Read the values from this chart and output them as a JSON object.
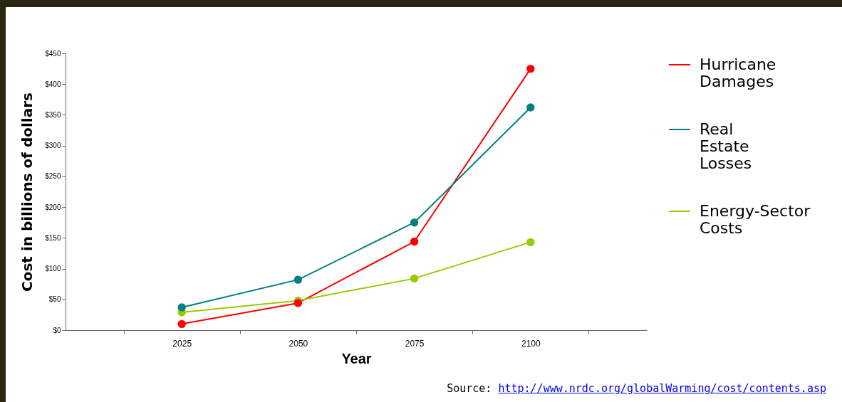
{
  "chart_data": {
    "type": "line",
    "xlabel": "Year",
    "ylabel": "Cost in billions of dollars",
    "categories": [
      "2025",
      "2050",
      "2075",
      "2100"
    ],
    "series": [
      {
        "name": "Hurricane Damages",
        "color": "#ff0000",
        "values": [
          10,
          44,
          144,
          425
        ]
      },
      {
        "name": "Real Estate Losses",
        "color": "#008080",
        "values": [
          37,
          82,
          175,
          362
        ]
      },
      {
        "name": "Energy-Sector Costs",
        "color": "#99cc00",
        "values": [
          29,
          48,
          84,
          143
        ]
      }
    ],
    "ylim": [
      0,
      450
    ],
    "yticks": [
      {
        "value": 0,
        "label": "$0"
      },
      {
        "value": 50,
        "label": "$50"
      },
      {
        "value": 100,
        "label": "$100"
      },
      {
        "value": 150,
        "label": "$150"
      },
      {
        "value": 200,
        "label": "$200"
      },
      {
        "value": 250,
        "label": "$250"
      },
      {
        "value": 300,
        "label": "$300"
      },
      {
        "value": 350,
        "label": "$350"
      },
      {
        "value": 400,
        "label": "$400"
      },
      {
        "value": 450,
        "label": "$450"
      }
    ],
    "grid": false,
    "legend": "right",
    "marker": "circle",
    "line_style": "solid",
    "annotations": [
      "Source: http://www.nrdc.org/globalWarming/cost/contents.asp"
    ]
  }
}
